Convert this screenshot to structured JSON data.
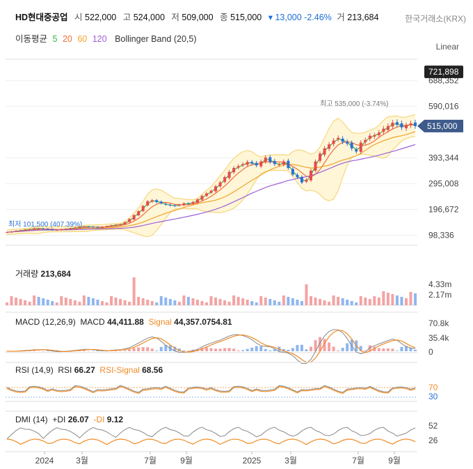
{
  "header": {
    "name": "HD현대중공업",
    "open_label": "시",
    "open": "522,000",
    "high_label": "고",
    "high": "524,000",
    "low_label": "저",
    "low": "509,000",
    "close_label": "종",
    "close": "515,000",
    "change": "▾ 13,000 -2.46%",
    "vol_label": "거",
    "volume": "213,684",
    "exchange": "한국거래소(KRX)"
  },
  "moving_avg": {
    "label": "이동평균",
    "periods": [
      "5",
      "20",
      "60",
      "120"
    ],
    "colors": [
      "#3cb043",
      "#f26b3a",
      "#f0a42a",
      "#9b5fd6"
    ],
    "bollinger": "Bollinger Band (20,5)"
  },
  "scale_mode": "Linear",
  "colors": {
    "up": "#e84a4a",
    "down": "#2b6fd6",
    "band_fill": "#fff6d8",
    "band_line": "#f5d77a"
  },
  "chart_data": [
    {
      "type": "candlestick",
      "title": "HD현대중공업",
      "x_ticks": [
        "2024",
        "3월",
        "7월",
        "9월",
        "2025",
        "3월",
        "7월",
        "9월"
      ],
      "y_ticks": [
        "98,336",
        "196,672",
        "295,008",
        "393,344",
        "590,016",
        "688,352"
      ],
      "ylim": [
        60000,
        770000
      ],
      "current_price": "515,000",
      "max_price_tag": "721,898",
      "high_annotation": "최고 535,000 (-3.74%)",
      "low_annotation": "최저 101,500 (407.39%)",
      "close_series": [
        110000,
        112000,
        115000,
        117000,
        120000,
        121000,
        125000,
        124000,
        122000,
        120000,
        118000,
        119000,
        121000,
        123000,
        125000,
        127000,
        130000,
        132000,
        131000,
        129000,
        128000,
        130000,
        133000,
        136000,
        138000,
        140000,
        148000,
        160000,
        175000,
        190000,
        210000,
        228000,
        232000,
        225000,
        220000,
        215000,
        212000,
        210000,
        215000,
        220000,
        218000,
        225000,
        235000,
        248000,
        258000,
        268000,
        285000,
        300000,
        320000,
        340000,
        355000,
        362000,
        370000,
        378000,
        372000,
        365000,
        380000,
        395000,
        378000,
        370000,
        368000,
        380000,
        355000,
        330000,
        320000,
        300000,
        310000,
        345000,
        380000,
        410000,
        430000,
        445000,
        460000,
        470000,
        455000,
        448000,
        430000,
        418000,
        452000,
        462000,
        478000,
        480000,
        490000,
        505000,
        515000,
        528000,
        520000,
        510000,
        518000,
        525000,
        515000
      ]
    },
    {
      "type": "bar",
      "title": "거래량",
      "value_label": "213,684",
      "y_ticks": [
        "4.33m",
        "2.17m"
      ]
    },
    {
      "type": "line",
      "title": "MACD (12,26,9)",
      "series": [
        {
          "name": "MACD",
          "last": "44,411.88"
        },
        {
          "name": "Signal",
          "last": "44,357.0754.81"
        }
      ],
      "y_ticks": [
        "70.8k",
        "35.4k",
        "0"
      ]
    },
    {
      "type": "line",
      "title": "RSI (14,9)",
      "series": [
        {
          "name": "RSI",
          "last": "66.27"
        },
        {
          "name": "RSI-Signal",
          "last": "68.56"
        }
      ],
      "y_ticks": [
        "70",
        "30"
      ]
    },
    {
      "type": "line",
      "title": "DMI (14)",
      "series": [
        {
          "name": "+DI",
          "last": "26.07"
        },
        {
          "name": "-DI",
          "last": "9.12"
        }
      ],
      "y_ticks": [
        "52",
        "26"
      ]
    }
  ]
}
